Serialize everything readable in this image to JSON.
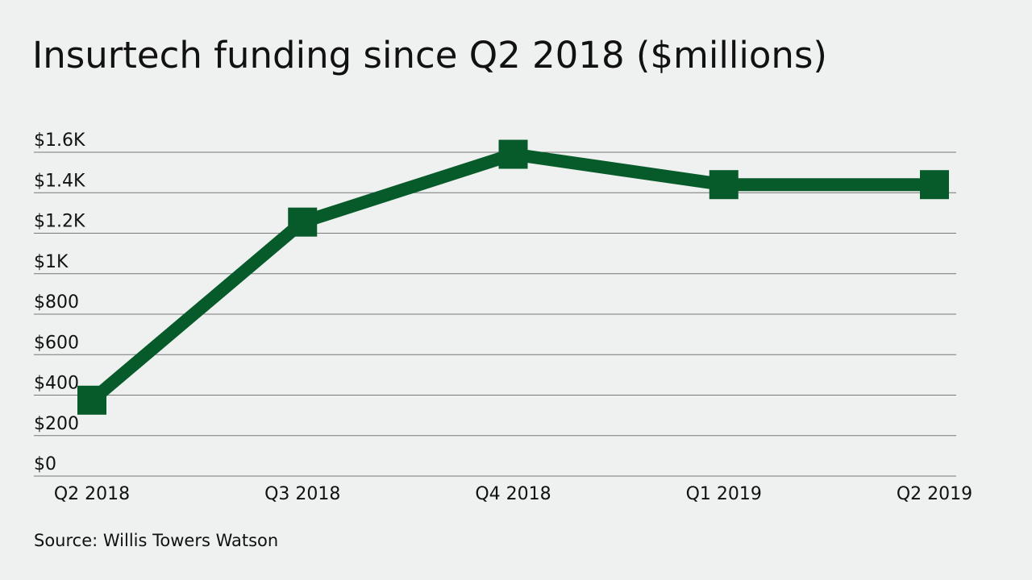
{
  "chart_data": {
    "type": "line",
    "title": "Insurtech funding since Q2 2018 ($millions)",
    "source": "Source: Willis Towers Watson",
    "categories": [
      "Q2 2018",
      "Q3 2018",
      "Q4 2018",
      "Q1 2019",
      "Q2 2019"
    ],
    "values": [
      375,
      1255,
      1590,
      1440,
      1440
    ],
    "color": "#075b2b",
    "ylim": [
      0,
      1600
    ],
    "yticks": [
      {
        "value": 0,
        "label": "$0"
      },
      {
        "value": 200,
        "label": "$200"
      },
      {
        "value": 400,
        "label": "$400"
      },
      {
        "value": 600,
        "label": "$600"
      },
      {
        "value": 800,
        "label": "$800"
      },
      {
        "value": 1000,
        "label": "$1K"
      },
      {
        "value": 1200,
        "label": "$1.2K"
      },
      {
        "value": 1400,
        "label": "$1.4K"
      },
      {
        "value": 1600,
        "label": "$1.6K"
      }
    ],
    "grid": true
  }
}
